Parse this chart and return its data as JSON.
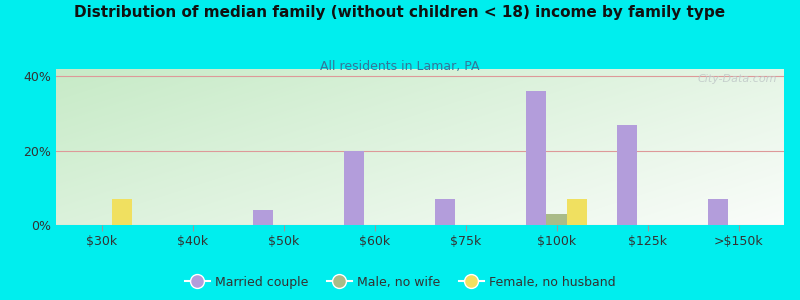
{
  "title": "Distribution of median family (without children < 18) income by family type",
  "subtitle": "All residents in Lamar, PA",
  "background_color": "#00EEEE",
  "categories": [
    "$30k",
    "$40k",
    "$50k",
    "$60k",
    "$75k",
    "$100k",
    "$125k",
    ">$150k"
  ],
  "married_couple": [
    0,
    0,
    4,
    20,
    7,
    36,
    27,
    7
  ],
  "male_no_wife": [
    0,
    0,
    0,
    0,
    0,
    3,
    0,
    0
  ],
  "female_no_husband": [
    7,
    0,
    0,
    0,
    0,
    7,
    0,
    0
  ],
  "bar_color_married": "#b39ddb",
  "bar_color_male": "#aabb88",
  "bar_color_female": "#f0e060",
  "ylim": [
    0,
    42
  ],
  "yticks": [
    0,
    20,
    40
  ],
  "ytick_labels": [
    "0%",
    "20%",
    "40%"
  ],
  "watermark": "City-Data.com",
  "legend_labels": [
    "Married couple",
    "Male, no wife",
    "Female, no husband"
  ],
  "title_fontsize": 11,
  "subtitle_fontsize": 9,
  "subtitle_color": "#337799",
  "title_color": "#111111",
  "tick_label_color": "#333333",
  "grid_color": "#dd9999",
  "bar_width": 0.22
}
